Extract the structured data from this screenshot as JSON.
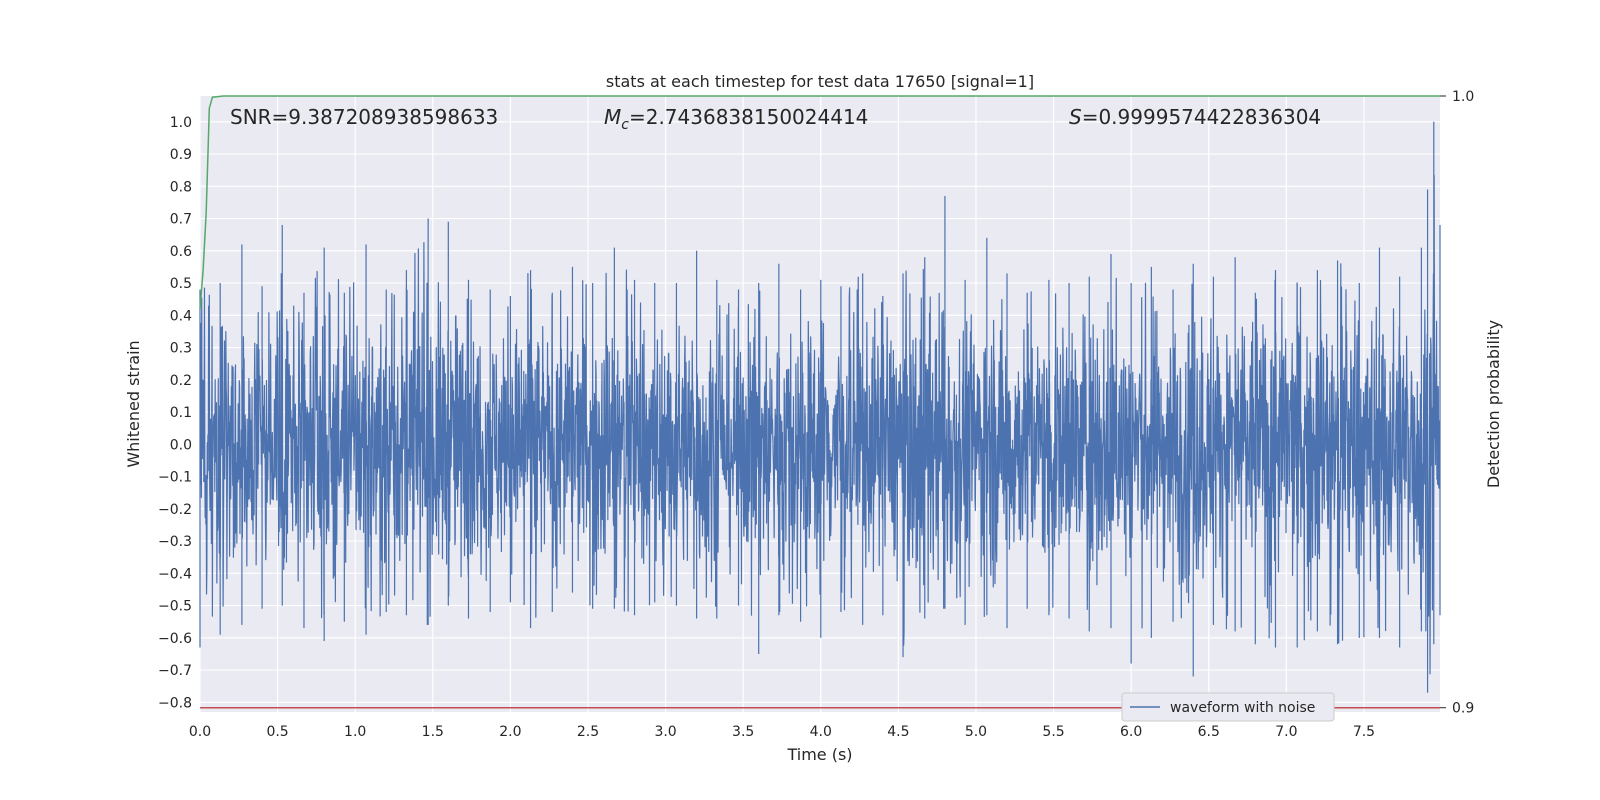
{
  "chart_data": {
    "type": "line",
    "title": "stats at each timestep for test data 17650 [signal=1]",
    "xlabel": "Time (s)",
    "ylabel": "Whitened strain",
    "y2label": "Detection probability",
    "xlim": [
      0.0,
      7.99
    ],
    "ylim": [
      -0.83,
      1.08
    ],
    "y2lim": [
      0.8993,
      1.0
    ],
    "xticks": [
      "0.0",
      "0.5",
      "1.0",
      "1.5",
      "2.0",
      "2.5",
      "3.0",
      "3.5",
      "4.0",
      "4.5",
      "5.0",
      "5.5",
      "6.0",
      "6.5",
      "7.0",
      "7.5"
    ],
    "yticks": [
      "−0.8",
      "−0.7",
      "−0.6",
      "−0.5",
      "−0.4",
      "−0.3",
      "−0.2",
      "−0.1",
      "0.0",
      "0.1",
      "0.2",
      "0.3",
      "0.4",
      "0.5",
      "0.6",
      "0.7",
      "0.8",
      "0.9",
      "1.0"
    ],
    "y2ticks": [
      "0.9",
      "1.0"
    ],
    "annotations": {
      "snr": "SNR=9.387208938598633",
      "mc_symbol": "M",
      "mc_sub": "c",
      "mc_value": "=2.7436838150024414",
      "s_symbol": "S",
      "s_value": "=0.9999574422836304"
    },
    "series": [
      {
        "name": "waveform with noise",
        "axis": "left",
        "color": "#4c72b0",
        "x": [
          0.0,
          0.13,
          0.27,
          0.4,
          0.53,
          0.67,
          0.8,
          0.93,
          1.07,
          1.2,
          1.33,
          1.47,
          1.6,
          1.73,
          1.87,
          2.0,
          2.13,
          2.27,
          2.4,
          2.53,
          2.67,
          2.8,
          2.93,
          3.07,
          3.2,
          3.33,
          3.47,
          3.6,
          3.73,
          3.87,
          4.0,
          4.13,
          4.27,
          4.4,
          4.53,
          4.67,
          4.8,
          4.93,
          5.07,
          5.2,
          5.33,
          5.47,
          5.6,
          5.73,
          5.87,
          6.0,
          6.13,
          6.27,
          6.4,
          6.53,
          6.67,
          6.8,
          6.93,
          7.07,
          7.2,
          7.33,
          7.47,
          7.6,
          7.73,
          7.87,
          7.91,
          7.95,
          7.99
        ],
        "max": [
          0.48,
          0.5,
          0.62,
          0.49,
          0.68,
          0.47,
          0.61,
          0.47,
          0.62,
          0.48,
          0.54,
          0.7,
          0.69,
          0.51,
          0.48,
          0.46,
          0.54,
          0.47,
          0.55,
          0.5,
          0.61,
          0.51,
          0.5,
          0.5,
          0.6,
          0.51,
          0.48,
          0.5,
          0.56,
          0.48,
          0.51,
          0.49,
          0.53,
          0.46,
          0.53,
          0.58,
          0.77,
          0.51,
          0.64,
          0.53,
          0.47,
          0.51,
          0.5,
          0.52,
          0.59,
          0.5,
          0.55,
          0.48,
          0.56,
          0.52,
          0.58,
          0.47,
          0.54,
          0.5,
          0.54,
          0.57,
          0.5,
          0.61,
          0.52,
          0.61,
          0.79,
          1.0,
          0.68
        ],
        "min": [
          -0.63,
          -0.59,
          -0.56,
          -0.51,
          -0.5,
          -0.57,
          -0.61,
          -0.55,
          -0.59,
          -0.52,
          -0.53,
          -0.56,
          -0.5,
          -0.54,
          -0.52,
          -0.49,
          -0.57,
          -0.52,
          -0.46,
          -0.51,
          -0.51,
          -0.53,
          -0.49,
          -0.5,
          -0.54,
          -0.54,
          -0.5,
          -0.65,
          -0.53,
          -0.55,
          -0.6,
          -0.52,
          -0.56,
          -0.53,
          -0.66,
          -0.54,
          -0.51,
          -0.56,
          -0.53,
          -0.57,
          -0.51,
          -0.53,
          -0.54,
          -0.58,
          -0.57,
          -0.68,
          -0.6,
          -0.55,
          -0.72,
          -0.56,
          -0.58,
          -0.62,
          -0.63,
          -0.63,
          -0.58,
          -0.62,
          -0.6,
          -0.6,
          -0.63,
          -0.58,
          -0.77,
          -0.62,
          -0.53
        ]
      },
      {
        "axis": "right",
        "color": "#55a868",
        "x": [
          0.0,
          0.02,
          0.04,
          0.06,
          0.08,
          0.15,
          0.3,
          0.5,
          1.0,
          2.0,
          3.0,
          4.0,
          5.0,
          6.0,
          7.0,
          7.99
        ],
        "values": [
          0.9652,
          0.9715,
          0.981,
          0.998,
          0.9998,
          1.0,
          1.0,
          1.0,
          1.0,
          1.0,
          1.0,
          1.0,
          1.0,
          1.0,
          1.0,
          1.0
        ]
      },
      {
        "axis": "right",
        "color": "#c44e52",
        "x": [
          0.0,
          7.99
        ],
        "values": [
          0.9,
          0.9
        ]
      }
    ],
    "legend": {
      "entries": [
        "waveform with noise"
      ],
      "placement": "lower-right"
    },
    "grid": true,
    "background": "#eaeaf2"
  }
}
